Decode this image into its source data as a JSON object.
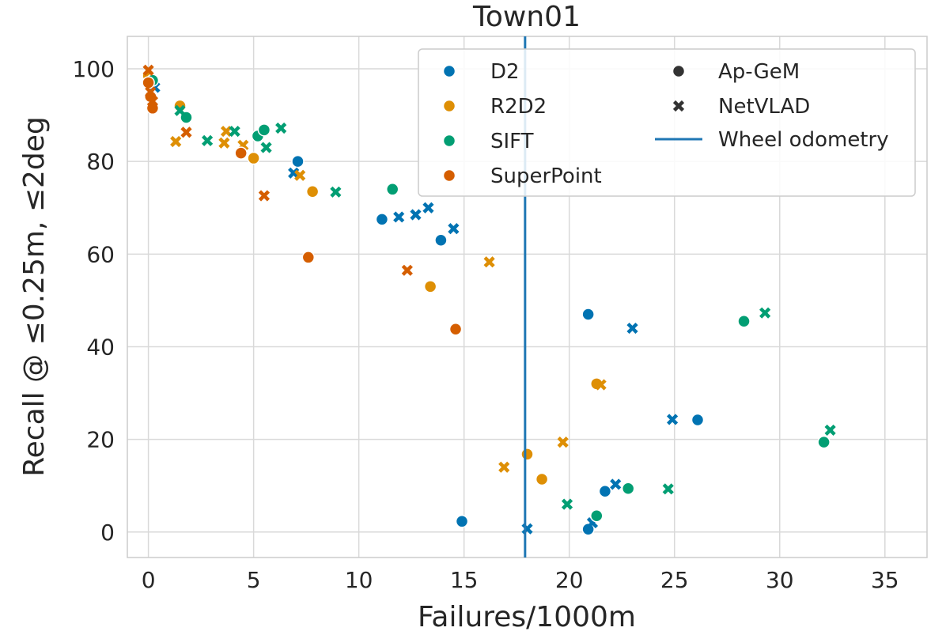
{
  "chart_data": {
    "type": "scatter",
    "title": "Town01",
    "xlabel": "Failures/1000m",
    "ylabel": "Recall @ ≤0.25m, ≤2deg",
    "xlim": [
      -1,
      37
    ],
    "ylim": [
      -5.5,
      107
    ],
    "xticks": [
      0,
      5,
      10,
      15,
      20,
      25,
      30,
      35
    ],
    "yticks": [
      0,
      20,
      40,
      60,
      80,
      100
    ],
    "grid": true,
    "legend_position": "top-right",
    "reference_line": {
      "name": "Wheel odometry",
      "x": 17.9,
      "color": "#1f77b4"
    },
    "series": [
      {
        "name": "D2",
        "color": "#0173b2",
        "apgem": [
          [
            0.1,
            96.5
          ],
          [
            7.1,
            80
          ],
          [
            11.1,
            67.5
          ],
          [
            13.9,
            63
          ],
          [
            14.9,
            2.3
          ],
          [
            20.9,
            47
          ],
          [
            21.7,
            8.8
          ],
          [
            26.1,
            24.2
          ],
          [
            20.9,
            0.6
          ]
        ],
        "netvlad": [
          [
            0.3,
            96
          ],
          [
            6.9,
            77.5
          ],
          [
            11.9,
            68
          ],
          [
            12.7,
            68.5
          ],
          [
            13.3,
            70
          ],
          [
            14.5,
            65.5
          ],
          [
            18,
            0.7
          ],
          [
            21.1,
            2
          ],
          [
            22.2,
            10.3
          ],
          [
            23,
            44
          ],
          [
            24.9,
            24.3
          ]
        ]
      },
      {
        "name": "R2D2",
        "color": "#de8f05",
        "apgem": [
          [
            0,
            98.5
          ],
          [
            1.5,
            92
          ],
          [
            5,
            80.7
          ],
          [
            7.8,
            73.5
          ],
          [
            13.4,
            53
          ],
          [
            18,
            16.8
          ],
          [
            18.7,
            11.4
          ],
          [
            21.3,
            32
          ]
        ],
        "netvlad": [
          [
            1.3,
            84.3
          ],
          [
            3.7,
            86.5
          ],
          [
            3.6,
            84
          ],
          [
            4.5,
            83.5
          ],
          [
            7.2,
            77
          ],
          [
            16.2,
            58.3
          ],
          [
            16.9,
            14
          ],
          [
            19.7,
            19.4
          ],
          [
            21.5,
            31.8
          ]
        ]
      },
      {
        "name": "SIFT",
        "color": "#029e73",
        "apgem": [
          [
            0.2,
            97.5
          ],
          [
            1.8,
            89.5
          ],
          [
            5.2,
            85.5
          ],
          [
            5.5,
            86.8
          ],
          [
            11.6,
            74
          ],
          [
            21.3,
            3.5
          ],
          [
            22.8,
            9.4
          ],
          [
            28.3,
            45.5
          ],
          [
            32.1,
            19.4
          ]
        ],
        "netvlad": [
          [
            1.5,
            91
          ],
          [
            2.8,
            84.5
          ],
          [
            4.1,
            86.5
          ],
          [
            5.6,
            83
          ],
          [
            6.3,
            87.2
          ],
          [
            8.9,
            73.4
          ],
          [
            19.9,
            6
          ],
          [
            24.7,
            9.3
          ],
          [
            29.3,
            47.3
          ],
          [
            32.4,
            22
          ]
        ]
      },
      {
        "name": "SuperPoint",
        "color": "#d55e00",
        "apgem": [
          [
            0,
            97
          ],
          [
            0.1,
            94
          ],
          [
            0.2,
            91.5
          ],
          [
            4.4,
            81.8
          ],
          [
            7.6,
            59.3
          ],
          [
            14.6,
            43.8
          ]
        ],
        "netvlad": [
          [
            0,
            99.7
          ],
          [
            0.1,
            95
          ],
          [
            0.2,
            93
          ],
          [
            1.8,
            86.3
          ],
          [
            5.5,
            72.6
          ],
          [
            12.3,
            56.5
          ]
        ]
      }
    ],
    "marker_legend": [
      {
        "name": "Ap-GeM",
        "marker": "circle"
      },
      {
        "name": "NetVLAD",
        "marker": "x"
      }
    ]
  }
}
